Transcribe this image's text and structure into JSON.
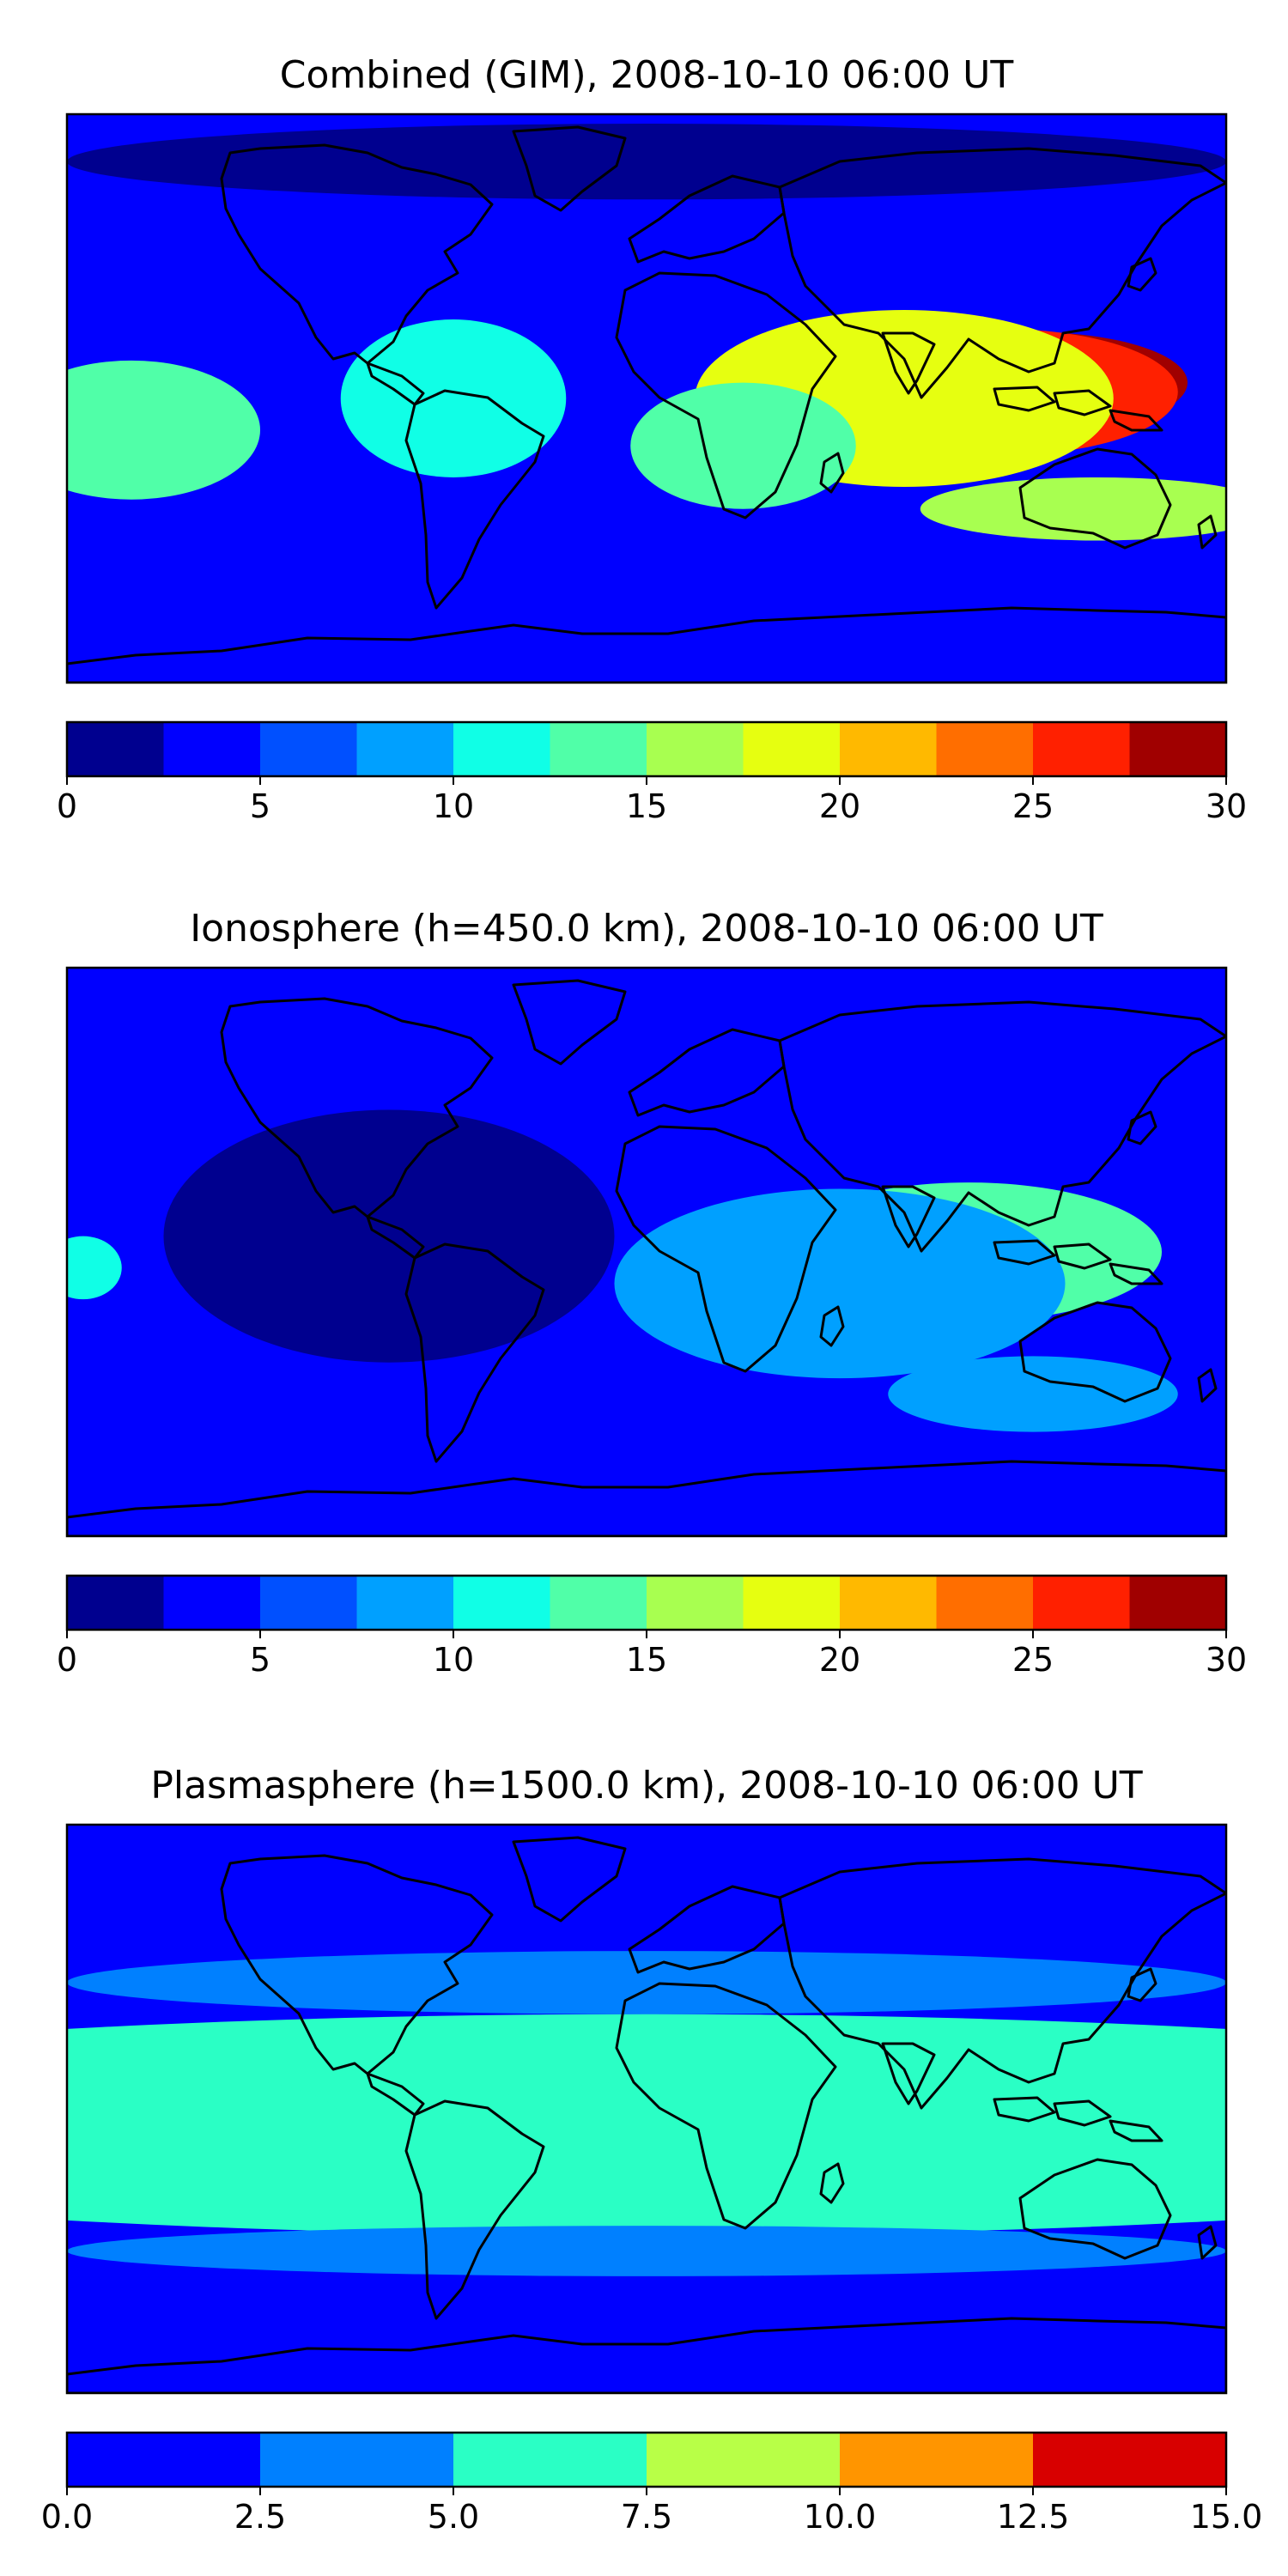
{
  "chart_data": [
    {
      "type": "heatmap",
      "title": "Combined (GIM), 2008-10-10 06:00 UT",
      "colorbar": {
        "range": [
          0,
          30
        ],
        "levels": [
          0,
          2.5,
          5,
          7.5,
          10,
          12.5,
          15,
          17.5,
          20,
          22.5,
          25,
          27.5,
          30
        ],
        "tick_labels": [
          "0",
          "5",
          "10",
          "15",
          "20",
          "25",
          "30"
        ],
        "colors": [
          "#00008f",
          "#0000ff",
          "#0050ff",
          "#00a0ff",
          "#10ffe6",
          "#50ffa8",
          "#a8ff50",
          "#e6ff10",
          "#ffb900",
          "#ff6e00",
          "#ff2000",
          "#a00000"
        ]
      },
      "field": {
        "background": 1,
        "cells": [
          {
            "lon": 120,
            "lat": 5,
            "level": 10,
            "sx": 48,
            "sy": 16
          },
          {
            "lon": 110,
            "lat": 2,
            "level": 9,
            "sx": 55,
            "sy": 20
          },
          {
            "lon": 80,
            "lat": 0,
            "level": 6,
            "sx": 65,
            "sy": 28
          },
          {
            "lon": 30,
            "lat": -15,
            "level": 4,
            "sx": 35,
            "sy": 20
          },
          {
            "lon": 140,
            "lat": -35,
            "level": 5,
            "sx": 55,
            "sy": 10
          },
          {
            "lon": -175,
            "lat": -5,
            "level": 6,
            "sx": 20,
            "sy": 14
          },
          {
            "lon": -160,
            "lat": -10,
            "level": 4,
            "sx": 40,
            "sy": 22
          },
          {
            "lon": -60,
            "lat": 0,
            "level": 3,
            "sx": 35,
            "sy": 25
          },
          {
            "lon": 0,
            "lat": 75,
            "level": -1,
            "sx": 180,
            "sy": 12
          }
        ]
      }
    },
    {
      "type": "heatmap",
      "title": "Ionosphere  (h=450.0 km), 2008-10-10 06:00 UT",
      "colorbar": {
        "range": [
          0,
          30
        ],
        "levels": [
          0,
          2.5,
          5,
          7.5,
          10,
          12.5,
          15,
          17.5,
          20,
          22.5,
          25,
          27.5,
          30
        ],
        "tick_labels": [
          "0",
          "5",
          "10",
          "15",
          "20",
          "25",
          "30"
        ],
        "colors": [
          "#00008f",
          "#0000ff",
          "#0050ff",
          "#00a0ff",
          "#10ffe6",
          "#50ffa8",
          "#a8ff50",
          "#e6ff10",
          "#ffb900",
          "#ff6e00",
          "#ff2000",
          "#a00000"
        ]
      },
      "field": {
        "background": 1,
        "cells": [
          {
            "lon": -80,
            "lat": 5,
            "level": -1,
            "sx": 70,
            "sy": 40
          },
          {
            "lon": 120,
            "lat": 5,
            "level": 7,
            "sx": 25,
            "sy": 10
          },
          {
            "lon": 100,
            "lat": 0,
            "level": 4,
            "sx": 60,
            "sy": 22
          },
          {
            "lon": 60,
            "lat": -10,
            "level": 2,
            "sx": 70,
            "sy": 30
          },
          {
            "lon": 120,
            "lat": -45,
            "level": 2,
            "sx": 45,
            "sy": 12
          },
          {
            "lon": -175,
            "lat": -5,
            "level": 3,
            "sx": 12,
            "sy": 10
          }
        ]
      }
    },
    {
      "type": "heatmap",
      "title": "Plasmasphere (h=1500.0 km), 2008-10-10 06:00 UT",
      "colorbar": {
        "range": [
          0,
          15
        ],
        "levels": [
          0,
          2.5,
          5,
          7.5,
          10,
          12.5,
          15
        ],
        "tick_labels": [
          "0.0",
          "2.5",
          "5.0",
          "7.5",
          "10.0",
          "12.5",
          "15.0"
        ],
        "colors": [
          "#0000ff",
          "#0080ff",
          "#2affc5",
          "#b8ff47",
          "#ff9500",
          "#d80000"
        ]
      },
      "field": {
        "background": 0,
        "cells": [
          {
            "lon": 0,
            "lat": -5,
            "level": 2,
            "sx": 360,
            "sy": 35
          },
          {
            "lon": 90,
            "lat": -2,
            "level": 2,
            "sx": 150,
            "sy": 14
          },
          {
            "lon": -150,
            "lat": -3,
            "level": 2,
            "sx": 55,
            "sy": 14
          },
          {
            "lon": 0,
            "lat": 40,
            "level": 1,
            "sx": 180,
            "sy": 10
          },
          {
            "lon": 0,
            "lat": -45,
            "level": 1,
            "sx": 180,
            "sy": 8
          },
          {
            "lon": 165,
            "lat": -55,
            "level": 0,
            "sx": 10,
            "sy": 5
          }
        ]
      }
    }
  ],
  "map": {
    "lon_range": [
      -180,
      180
    ],
    "lat_range": [
      -90,
      90
    ],
    "coastline_color": "#000000"
  }
}
